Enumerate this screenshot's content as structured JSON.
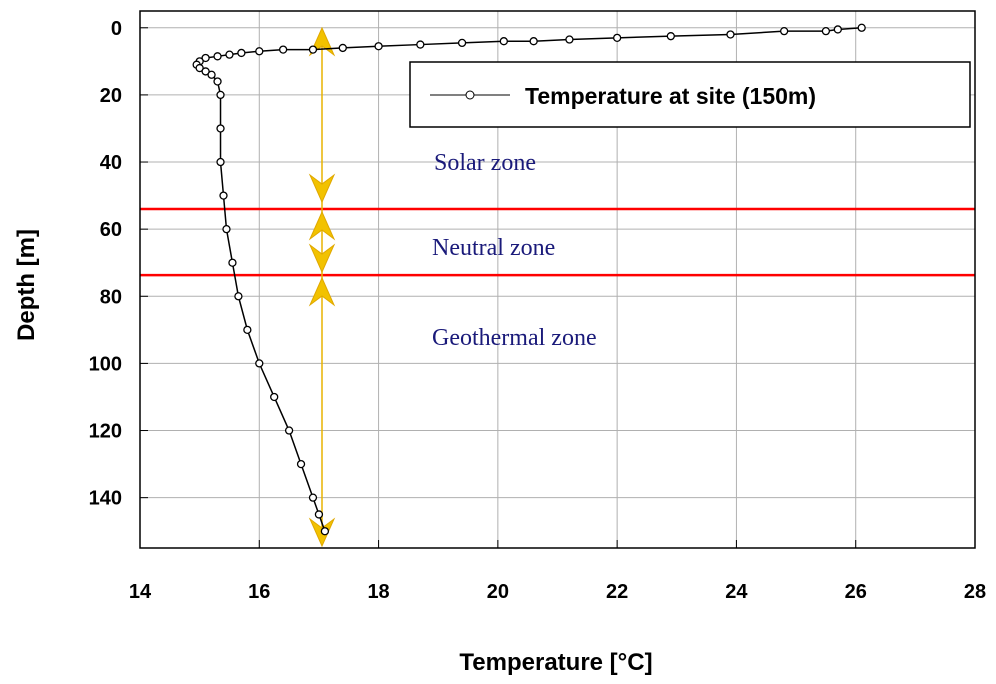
{
  "chart_data": {
    "type": "line",
    "xlabel": "Temperature [°C]",
    "ylabel": "Depth [m]",
    "xlim": [
      14,
      28
    ],
    "xticks": [
      14,
      16,
      18,
      20,
      22,
      24,
      26,
      28
    ],
    "ylim": [
      -5,
      155
    ],
    "yticks": [
      0,
      20,
      40,
      60,
      80,
      100,
      120,
      140
    ],
    "y_inverted": true,
    "grid": true,
    "legend": "upper right",
    "series": [
      {
        "name": "Temperature at site (150m)",
        "color": "#000000",
        "x": [
          26.1,
          25.7,
          25.5,
          24.8,
          23.9,
          22.9,
          22.0,
          21.2,
          20.6,
          20.1,
          19.4,
          18.7,
          18.0,
          17.4,
          16.9,
          16.4,
          16.0,
          15.7,
          15.5,
          15.3,
          15.1,
          15.0,
          14.95,
          15.0,
          15.1,
          15.2,
          15.3,
          15.35,
          15.35,
          15.35,
          15.4,
          15.45,
          15.55,
          15.65,
          15.8,
          16.0,
          16.25,
          16.5,
          16.7,
          16.9,
          17.0,
          17.1
        ],
        "values": [
          0,
          0.5,
          1,
          1,
          2,
          2.5,
          3,
          3.5,
          4,
          4,
          4.5,
          5,
          5.5,
          6,
          6.5,
          6.5,
          7,
          7.5,
          8,
          8.5,
          9,
          10,
          11,
          12,
          13,
          14,
          16,
          20,
          30,
          40,
          50,
          60,
          70,
          80,
          90,
          100,
          110,
          120,
          130,
          140,
          145,
          150
        ]
      }
    ],
    "reference_lines": [
      {
        "value": 54,
        "color": "#ff0000"
      },
      {
        "value": 73.7,
        "color": "#ff0000"
      }
    ],
    "annotations": [
      "Solar zone",
      "Neutral zone",
      "Geothermal zone"
    ]
  }
}
